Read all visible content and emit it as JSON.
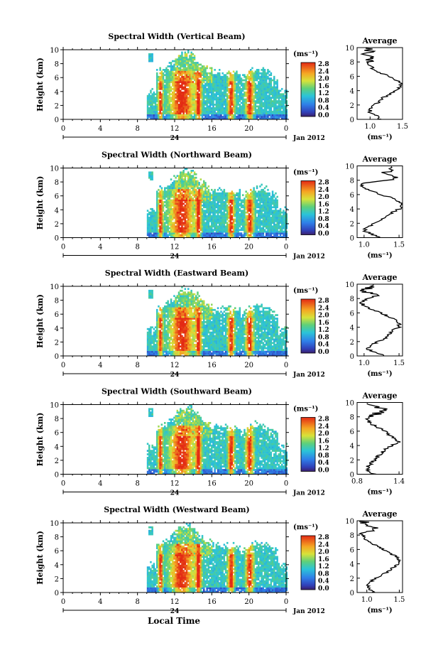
{
  "figure": {
    "date_label": "Jan 2012",
    "xlabel": "Local Time",
    "ylabel": "Height (km)",
    "colorbar_unit": "(ms⁻¹)",
    "avg_title": "Average",
    "avg_unit": "(ms⁻¹)",
    "day_label": "24",
    "colors": {
      "low": "#3b1f6b",
      "mid": "#2bc4d8",
      "high": "#e32a14",
      "profile": "#000000"
    }
  },
  "chart_data": [
    {
      "type": "heatmap",
      "title": "Spectral Width (Vertical Beam)",
      "ylabel": "Height (km)",
      "xlabel": "",
      "x_ticks": [
        "0",
        "4",
        "8",
        "12",
        "16",
        "20",
        "0"
      ],
      "ylim": [
        0,
        10
      ],
      "y_ticks": [
        "0",
        "2",
        "4",
        "6",
        "8",
        "10"
      ],
      "colorbar_ticks": [
        "0.0",
        "0.4",
        "0.8",
        "1.2",
        "1.6",
        "2.0",
        "2.4",
        "2.8"
      ],
      "average": {
        "title": "Average",
        "x_ticks": [
          "1.0",
          "1.5"
        ],
        "xlim": [
          0.8,
          1.5
        ],
        "y_ticks": [
          "0",
          "2",
          "4",
          "6",
          "8",
          "10"
        ],
        "heights": [
          0,
          0.5,
          1,
          1.5,
          2,
          2.5,
          3,
          3.5,
          4,
          4.5,
          5,
          5.5,
          6,
          6.5,
          7,
          7.5,
          8,
          8.5,
          9,
          9.5
        ],
        "values": [
          1.15,
          1.1,
          1.0,
          1.0,
          1.05,
          1.15,
          1.2,
          1.3,
          1.4,
          1.45,
          1.5,
          1.4,
          1.3,
          1.15,
          1.05,
          1.0,
          0.95,
          1.05,
          0.9,
          1.0
        ]
      }
    },
    {
      "type": "heatmap",
      "title": "Spectral Width (Northward Beam)",
      "ylabel": "Height (km)",
      "xlabel": "",
      "x_ticks": [
        "0",
        "4",
        "8",
        "12",
        "16",
        "20",
        "0"
      ],
      "ylim": [
        0,
        10
      ],
      "y_ticks": [
        "0",
        "2",
        "4",
        "6",
        "8",
        "10"
      ],
      "colorbar_ticks": [
        "0.0",
        "0.4",
        "0.8",
        "1.2",
        "1.6",
        "2.0",
        "2.4",
        "2.8"
      ],
      "average": {
        "title": "Average",
        "x_ticks": [
          "1.0",
          "1.5"
        ],
        "xlim": [
          0.9,
          1.55
        ],
        "y_ticks": [
          "0",
          "2",
          "4",
          "6",
          "8",
          "10"
        ],
        "heights": [
          0,
          0.5,
          1,
          1.5,
          2,
          2.5,
          3,
          3.5,
          4,
          4.5,
          5,
          5.5,
          6,
          6.5,
          7,
          7.5,
          8,
          8.5,
          9,
          9.5
        ],
        "values": [
          1.25,
          1.1,
          1.0,
          1.05,
          1.15,
          1.25,
          1.3,
          1.4,
          1.5,
          1.55,
          1.5,
          1.4,
          1.25,
          1.1,
          1.0,
          0.95,
          1.3,
          1.5,
          1.25,
          1.45
        ]
      }
    },
    {
      "type": "heatmap",
      "title": "Spectral Width (Eastward Beam)",
      "ylabel": "Height (km)",
      "xlabel": "",
      "x_ticks": [
        "0",
        "4",
        "8",
        "12",
        "16",
        "20",
        "0"
      ],
      "ylim": [
        0,
        10
      ],
      "y_ticks": [
        "0",
        "2",
        "4",
        "6",
        "8",
        "10"
      ],
      "colorbar_ticks": [
        "0.0",
        "0.4",
        "0.8",
        "1.2",
        "1.6",
        "2.0",
        "2.4",
        "2.8"
      ],
      "average": {
        "title": "Average",
        "x_ticks": [
          "1.0",
          "1.5"
        ],
        "xlim": [
          0.9,
          1.55
        ],
        "y_ticks": [
          "0",
          "2",
          "4",
          "6",
          "8",
          "10"
        ],
        "heights": [
          0,
          0.5,
          1,
          1.5,
          2,
          2.5,
          3,
          3.5,
          4,
          4.5,
          5,
          5.5,
          6,
          6.5,
          7,
          7.5,
          8,
          8.5,
          9,
          9.5
        ],
        "values": [
          1.3,
          1.15,
          1.05,
          1.1,
          1.2,
          1.3,
          1.35,
          1.4,
          1.5,
          1.5,
          1.45,
          1.35,
          1.25,
          1.1,
          1.0,
          0.95,
          1.05,
          1.2,
          0.95,
          1.1
        ]
      }
    },
    {
      "type": "heatmap",
      "title": "Spectral Width (Southward Beam)",
      "ylabel": "Height (km)",
      "xlabel": "",
      "x_ticks": [
        "0",
        "4",
        "8",
        "12",
        "16",
        "20",
        "0"
      ],
      "ylim": [
        0,
        10
      ],
      "y_ticks": [
        "0",
        "2",
        "4",
        "6",
        "8",
        "10"
      ],
      "colorbar_ticks": [
        "0.0",
        "0.4",
        "0.8",
        "1.2",
        "1.6",
        "2.0",
        "2.4",
        "2.8"
      ],
      "average": {
        "title": "Average",
        "x_ticks": [
          "0.8",
          "1.4"
        ],
        "xlim": [
          0.8,
          1.45
        ],
        "y_ticks": [
          "0",
          "2",
          "4",
          "6",
          "8",
          "10"
        ],
        "heights": [
          0,
          0.5,
          1,
          1.5,
          2,
          2.5,
          3,
          3.5,
          4,
          4.5,
          5,
          5.5,
          6,
          6.5,
          7,
          7.5,
          8,
          8.5,
          9,
          9.5
        ],
        "values": [
          1.05,
          0.95,
          0.95,
          1.0,
          1.05,
          1.1,
          1.15,
          1.2,
          1.3,
          1.4,
          1.35,
          1.25,
          1.2,
          1.1,
          1.0,
          0.95,
          0.95,
          1.1,
          1.25,
          1.0
        ]
      }
    },
    {
      "type": "heatmap",
      "title": "Spectral Width (Westward Beam)",
      "ylabel": "Height (km)",
      "xlabel": "Local Time",
      "x_ticks": [
        "0",
        "4",
        "8",
        "12",
        "16",
        "20",
        "0"
      ],
      "ylim": [
        0,
        10
      ],
      "y_ticks": [
        "0",
        "2",
        "4",
        "6",
        "8",
        "10"
      ],
      "colorbar_ticks": [
        "0.0",
        "0.4",
        "0.8",
        "1.2",
        "1.6",
        "2.0",
        "2.4",
        "2.8"
      ],
      "average": {
        "title": "Average",
        "x_ticks": [
          "1.0",
          "1.5"
        ],
        "xlim": [
          0.85,
          1.55
        ],
        "y_ticks": [
          "0",
          "2",
          "4",
          "6",
          "8",
          "10"
        ],
        "heights": [
          0,
          0.5,
          1,
          1.5,
          2,
          2.5,
          3,
          3.5,
          4,
          4.5,
          5,
          5.5,
          6,
          6.5,
          7,
          7.5,
          8,
          8.5,
          9,
          9.5
        ],
        "values": [
          1.1,
          1.05,
          1.0,
          1.05,
          1.15,
          1.25,
          1.35,
          1.4,
          1.5,
          1.5,
          1.45,
          1.35,
          1.25,
          1.15,
          1.05,
          0.95,
          0.95,
          1.0,
          1.1,
          0.95
        ]
      }
    }
  ]
}
